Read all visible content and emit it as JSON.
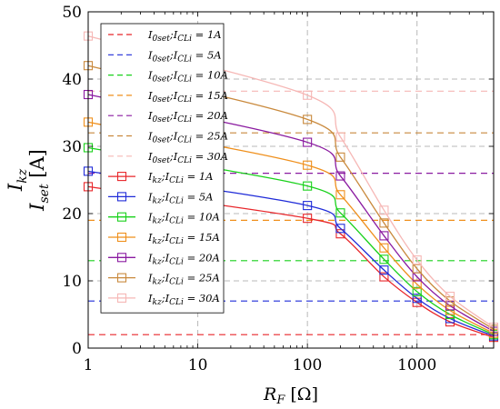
{
  "chart_data": {
    "type": "line",
    "x_scale": "log",
    "xlabel": "R_F [Ω]",
    "ylabel_line1": "I_kz",
    "ylabel_line2": "I_set [A]",
    "xlim": [
      1,
      5000
    ],
    "ylim": [
      0,
      50
    ],
    "x_ticks": [
      1,
      10,
      100,
      1000
    ],
    "x_tick_labels": [
      "1",
      "10",
      "100",
      "1000"
    ],
    "y_ticks": [
      0,
      10,
      20,
      30,
      40,
      50
    ],
    "y_tick_labels": [
      "0",
      "10",
      "20",
      "30",
      "40",
      "50"
    ],
    "grid": true,
    "legend_position": "top-left",
    "x": [
      1,
      100,
      200,
      500,
      1000,
      2000,
      5000
    ],
    "dashed_series": [
      {
        "label": "I0set;ICLi=1A",
        "value": 2.0,
        "color": "#e8262a"
      },
      {
        "label": "I0set;ICLi=5A",
        "value": 7.0,
        "color": "#1f2bd8"
      },
      {
        "label": "I0set;ICLi=10A",
        "value": 13.0,
        "color": "#19d11b"
      },
      {
        "label": "I0set;ICLi=15A",
        "value": 19.0,
        "color": "#ef8f1b"
      },
      {
        "label": "I0set;ICLi=20A",
        "value": 26.0,
        "color": "#8a1aa0"
      },
      {
        "label": "I0set;ICLi=25A",
        "value": 32.0,
        "color": "#c9893c"
      },
      {
        "label": "I0set;ICLi=30A",
        "value": 38.2,
        "color": "#f6b7b5"
      }
    ],
    "marker_series": [
      {
        "label": "Ikz;ICLi=1A",
        "color": "#e8262a",
        "values": [
          24.0,
          19.3,
          17.0,
          10.6,
          6.8,
          3.9,
          1.6
        ]
      },
      {
        "label": "Ikz;ICLi=5A",
        "color": "#1f2bd8",
        "values": [
          26.3,
          21.2,
          17.8,
          11.6,
          7.4,
          4.4,
          1.8
        ]
      },
      {
        "label": "Ikz;ICLi=10A",
        "color": "#19d11b",
        "values": [
          29.8,
          24.1,
          20.1,
          13.2,
          8.4,
          5.0,
          2.0
        ]
      },
      {
        "label": "Ikz;ICLi=15A",
        "color": "#ef8f1b",
        "values": [
          33.6,
          27.2,
          22.8,
          14.9,
          9.5,
          5.6,
          2.2
        ]
      },
      {
        "label": "Ikz;ICLi=20A",
        "color": "#8a1aa0",
        "values": [
          37.7,
          30.6,
          25.6,
          16.7,
          10.6,
          6.3,
          2.5
        ]
      },
      {
        "label": "Ikz;ICLi=25A",
        "color": "#c9893c",
        "values": [
          42.0,
          34.0,
          28.4,
          18.6,
          11.8,
          7.0,
          2.8
        ]
      },
      {
        "label": "Ikz;ICLi=30A",
        "color": "#f6b7b5",
        "values": [
          46.4,
          37.6,
          31.4,
          20.5,
          13.1,
          7.7,
          3.1
        ]
      }
    ]
  }
}
